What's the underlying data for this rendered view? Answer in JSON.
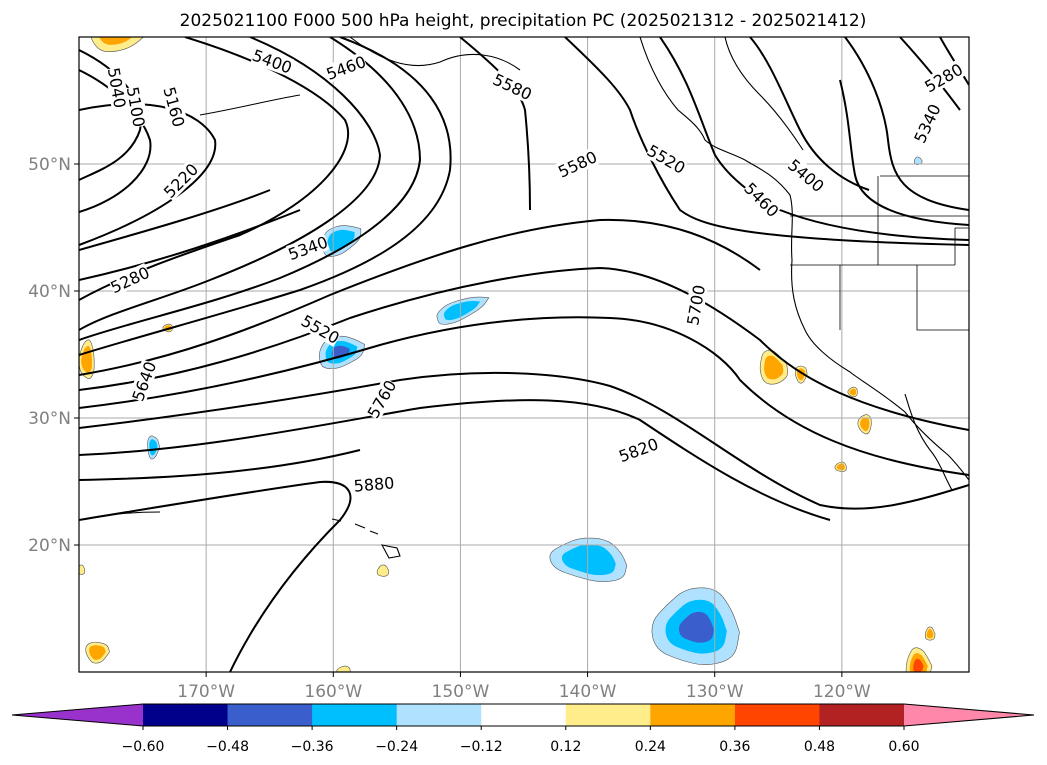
{
  "title": "2025021100 F000 500 hPa height, precipitation PC (2025021312 - 2025021412)",
  "chart_data": {
    "type": "contour-map",
    "title": "2025021100 F000 500 hPa height, precipitation PC (2025021312 - 2025021412)",
    "map": {
      "lon_range": [
        -180,
        -110
      ],
      "lat_range": [
        10,
        60
      ],
      "grid": true
    },
    "x_ticks": [
      "170°W",
      "160°W",
      "150°W",
      "140°W",
      "130°W",
      "120°W"
    ],
    "x_tick_values": [
      -170,
      -160,
      -150,
      -140,
      -130,
      -120
    ],
    "y_ticks": [
      "50°N",
      "40°N",
      "30°N",
      "20°N"
    ],
    "y_tick_values": [
      50,
      40,
      30,
      20
    ],
    "height_contour_labels": [
      {
        "text": "5040",
        "lon": -177,
        "lat": 56
      },
      {
        "text": "5100",
        "lon": -175.5,
        "lat": 54.5
      },
      {
        "text": "5160",
        "lon": -172.5,
        "lat": 54.5
      },
      {
        "text": "5220",
        "lon": -172,
        "lat": 48.7
      },
      {
        "text": "5280",
        "lon": -176,
        "lat": 40.9
      },
      {
        "text": "5340",
        "lon": -162,
        "lat": 43.4
      },
      {
        "text": "5400",
        "lon": -164.8,
        "lat": 58.1
      },
      {
        "text": "5460",
        "lon": -159,
        "lat": 57.6
      },
      {
        "text": "5520",
        "lon": -161,
        "lat": 37
      },
      {
        "text": "5580",
        "lon": -145.9,
        "lat": 56.1
      },
      {
        "text": "5580",
        "lon": -140.8,
        "lat": 50
      },
      {
        "text": "5520",
        "lon": -133.8,
        "lat": 50.4
      },
      {
        "text": "5460",
        "lon": -126.3,
        "lat": 47.2
      },
      {
        "text": "5400",
        "lon": -122.8,
        "lat": 49.1
      },
      {
        "text": "5280",
        "lon": -112,
        "lat": 56.8
      },
      {
        "text": "5340",
        "lon": -113.3,
        "lat": 53.2
      },
      {
        "text": "5640",
        "lon": -174.9,
        "lat": 32.9
      },
      {
        "text": "5700",
        "lon": -131.5,
        "lat": 38.9
      },
      {
        "text": "5760",
        "lon": -156.2,
        "lat": 31.5
      },
      {
        "text": "5820",
        "lon": -136,
        "lat": 27.5
      },
      {
        "text": "5880",
        "lon": -156.8,
        "lat": 24.8
      }
    ],
    "colorbar": {
      "extend": "both",
      "levels": [
        -0.6,
        -0.48,
        -0.36,
        -0.24,
        -0.12,
        0.12,
        0.24,
        0.36,
        0.48,
        0.6
      ],
      "tick_labels": [
        "−0.60",
        "−0.48",
        "−0.36",
        "−0.24",
        "−0.12",
        "0.12",
        "0.24",
        "0.36",
        "0.48",
        "0.60"
      ],
      "colors": [
        "#9932cc",
        "#00008b",
        "#3a5fcd",
        "#00bfff",
        "#b0e2ff",
        "#ffffff",
        "#ffec8b",
        "#ffa500",
        "#ff4500",
        "#b22222",
        "#ff88aa"
      ]
    }
  }
}
